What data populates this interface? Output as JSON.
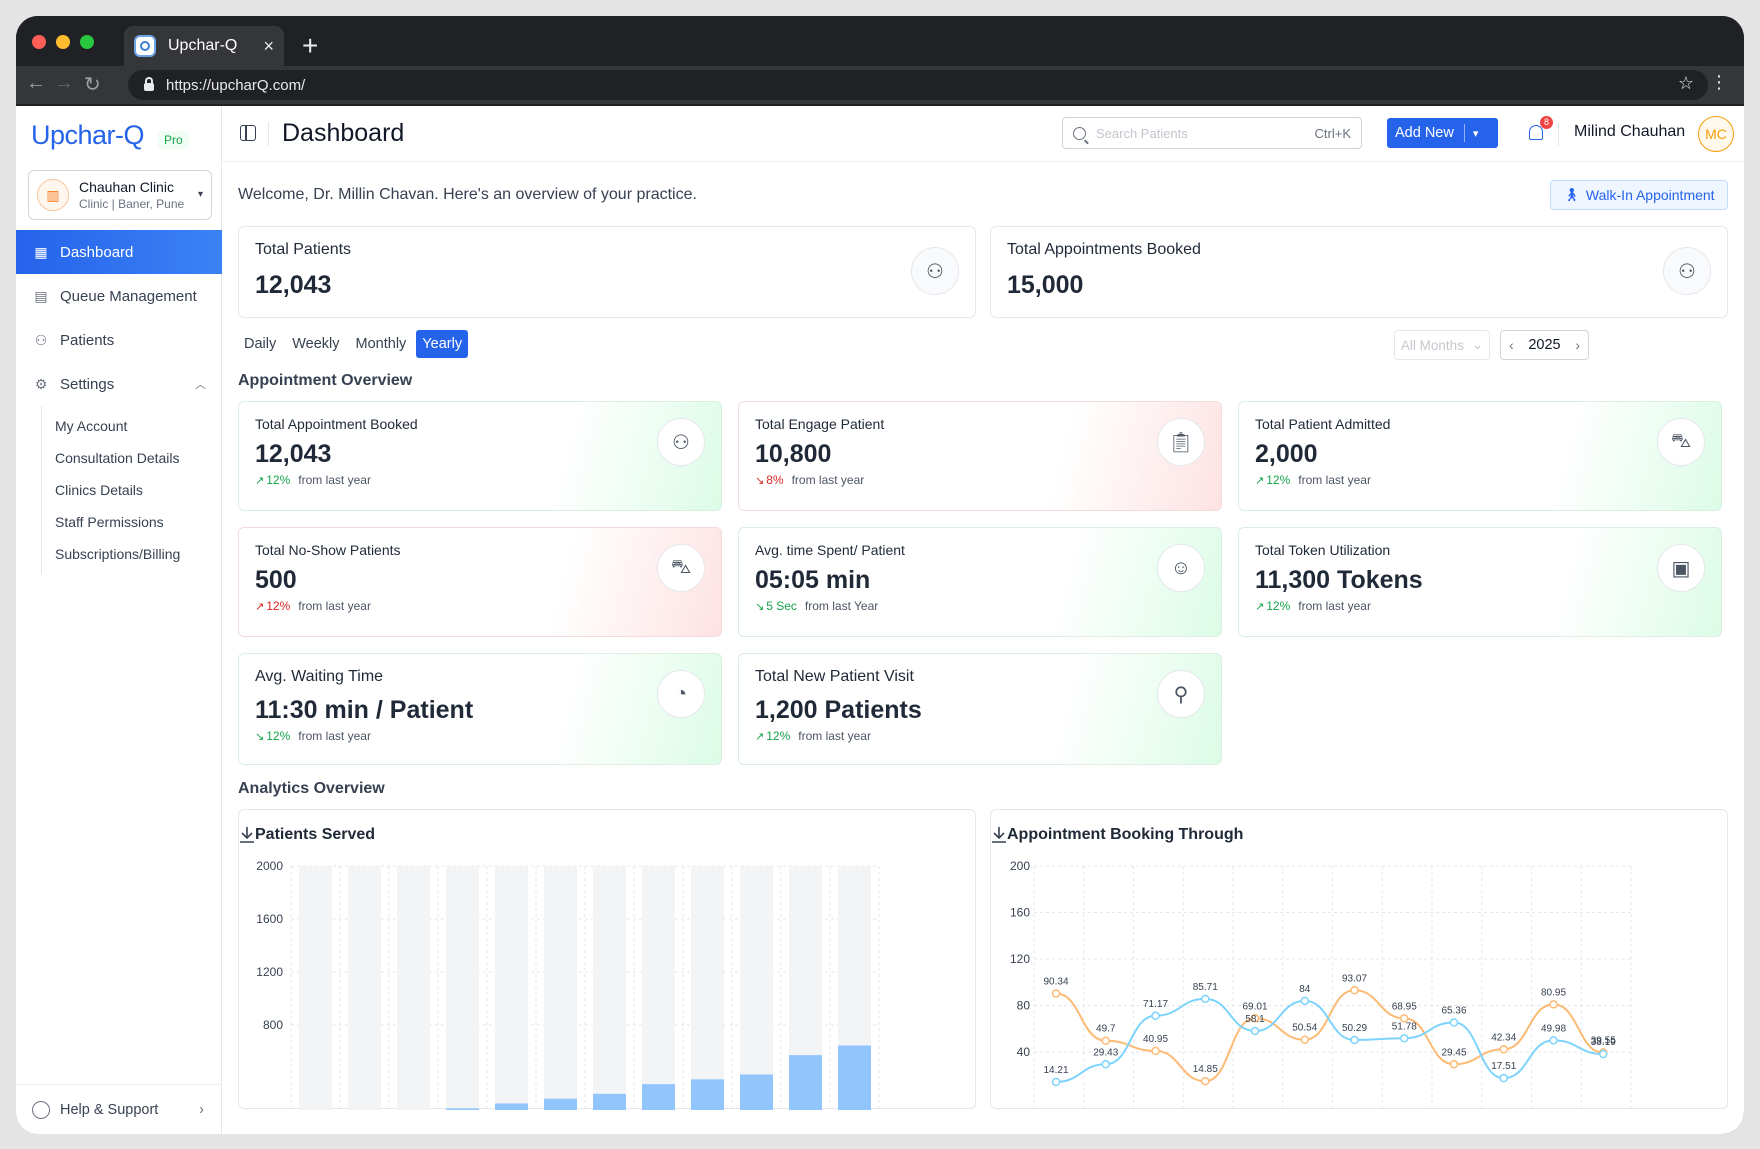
{
  "browser": {
    "tab_title": "Upchar-Q",
    "url": "https://upcharQ.com/"
  },
  "sidebar": {
    "logo": "Upchar-Q",
    "plan_badge": "Pro",
    "clinic": {
      "name": "Chauhan Clinic",
      "subtitle": "Clinic | Baner, Pune"
    },
    "items": [
      {
        "label": "Dashboard",
        "icon": "grid-icon",
        "active": true
      },
      {
        "label": "Queue Management",
        "icon": "queue-icon"
      },
      {
        "label": "Patients",
        "icon": "users-icon"
      },
      {
        "label": "Settings",
        "icon": "gear-icon",
        "expanded": true
      }
    ],
    "settings_items": [
      "My Account",
      "Consultation Details",
      "Clinics Details",
      "Staff Permissions",
      "Subscriptions/Billing"
    ],
    "help_label": "Help & Support"
  },
  "header": {
    "title": "Dashboard",
    "search_placeholder": "Search Patients",
    "search_shortcut": "Ctrl+K",
    "add_new_label": "Add New",
    "notification_count": "8",
    "user_name": "Milind Chauhan",
    "user_initials": "MC"
  },
  "main": {
    "welcome": "Welcome, Dr. Millin Chavan. Here's an overview of your practice.",
    "walkin_label": "Walk-In Appointment",
    "top_cards": [
      {
        "label": "Total Patients",
        "value": "12,043",
        "icon": "users-icon"
      },
      {
        "label": "Total Appointments Booked",
        "value": "15,000",
        "icon": "users-icon"
      }
    ],
    "period_tabs": [
      "Daily",
      "Weekly",
      "Monthly",
      "Yearly"
    ],
    "active_period": "Yearly",
    "months_select": "All Months",
    "year": "2025",
    "appointment_overview_title": "Appointment Overview",
    "stats": [
      {
        "label": "Total Appointment Booked",
        "value": "12,043",
        "trend": "12%",
        "direction": "up",
        "suffix": "from last year",
        "tone": "green",
        "icon": "users-icon"
      },
      {
        "label": "Total Engage Patient",
        "value": "10,800",
        "trend": "8%",
        "direction": "down",
        "suffix": "from last year",
        "tone": "red",
        "icon": "clipboard-icon"
      },
      {
        "label": "Total Patient Admitted",
        "value": "2,000",
        "trend": "12%",
        "direction": "up",
        "suffix": "from last year",
        "tone": "green",
        "icon": "bed-icon"
      },
      {
        "label": "Total No-Show Patients",
        "value": "500",
        "trend": "12%",
        "direction": "redup",
        "suffix": "from last year",
        "tone": "red",
        "icon": "bed-icon"
      },
      {
        "label": "Avg. time Spent/ Patient",
        "value": "05:05 min",
        "trend": "5 Sec",
        "direction": "greendown",
        "suffix": "from last Year",
        "tone": "green",
        "icon": "patient-care-icon"
      },
      {
        "label": "Total Token Utilization",
        "value": "11,300 Tokens",
        "trend": "12%",
        "direction": "up",
        "suffix": "from last year",
        "tone": "green",
        "icon": "calendar-check-icon"
      },
      {
        "label": "Avg. Waiting Time",
        "value": "11:30 min / Patient",
        "trend": "12%",
        "direction": "greendown",
        "suffix": "from last year",
        "tone": "green",
        "icon": "clock-icon"
      },
      {
        "label": "Total New Patient Visit",
        "value": "1,200 Patients",
        "trend": "12%",
        "direction": "up",
        "suffix": "from last year",
        "tone": "green",
        "icon": "user-icon"
      }
    ],
    "analytics_overview_title": "Analytics Overview"
  },
  "chart_data": [
    {
      "type": "bar",
      "title": "Patients Served",
      "ylim": [
        0,
        2000
      ],
      "yticks": [
        2000,
        1600,
        1200,
        800
      ],
      "background_max": 2000,
      "values": [
        0,
        0,
        50,
        100,
        150,
        200,
        250,
        350,
        400,
        450,
        650,
        750
      ],
      "color": "#93c5fd"
    },
    {
      "type": "line",
      "title": "Appointment Booking Through",
      "ylim": [
        0,
        200
      ],
      "yticks": [
        200,
        160,
        120,
        80,
        40
      ],
      "series": [
        {
          "values": [
            90.34,
            49.7,
            40.95,
            14.85,
            69.01,
            50.54,
            93.07,
            68.95,
            29.45,
            42.34,
            80.95,
            39.55
          ],
          "color": "#fdba74"
        },
        {
          "values": [
            14.21,
            29.43,
            71.17,
            85.71,
            58.1,
            84,
            50.29,
            51.78,
            65.36,
            17.51,
            49.98,
            38.19
          ],
          "color": "#7dd3fc"
        }
      ]
    }
  ]
}
